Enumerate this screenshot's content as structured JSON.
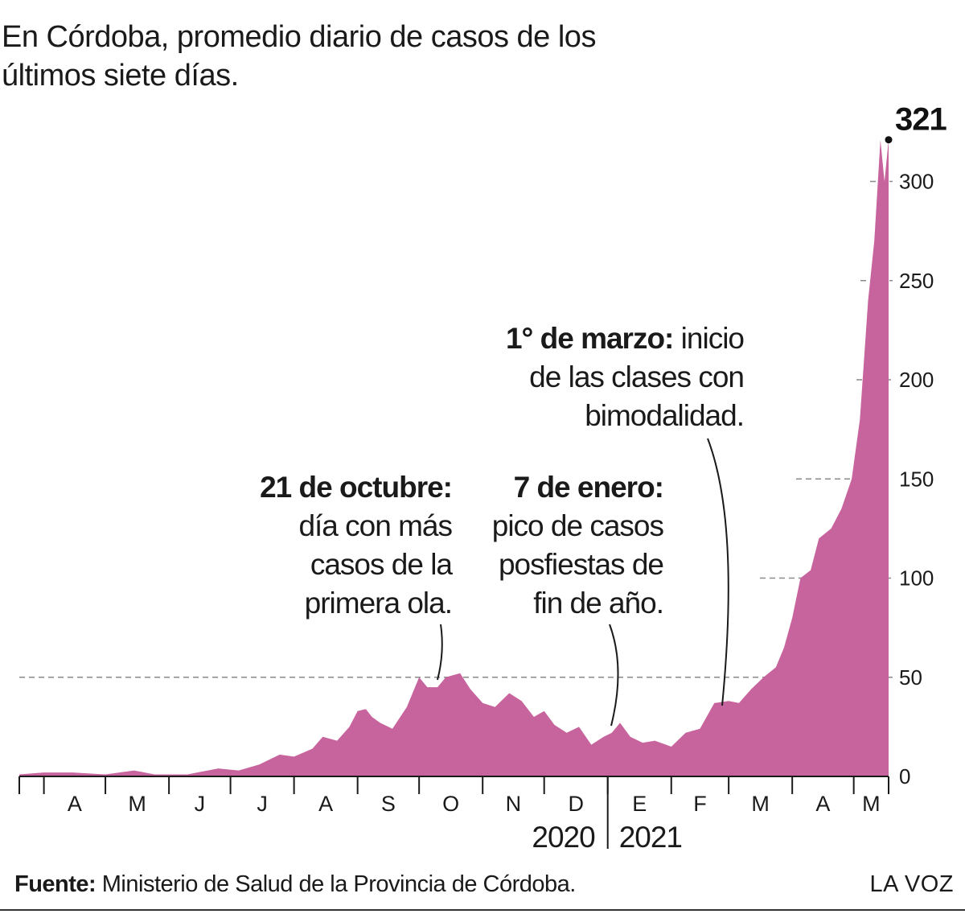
{
  "chart_data": {
    "type": "area",
    "title": "En Córdoba, promedio diario de casos de los últimos siete días.",
    "ylim": [
      0,
      321
    ],
    "yticks": [
      0,
      50,
      100,
      150,
      200,
      250,
      300
    ],
    "grid": "dashed lines at data levels",
    "color": "#c8649d",
    "x_start": "2020-03-20",
    "x_end": "2021-05-18",
    "months": [
      {
        "label": "A",
        "date": "2020-04"
      },
      {
        "label": "M",
        "date": "2020-05"
      },
      {
        "label": "J",
        "date": "2020-06"
      },
      {
        "label": "J",
        "date": "2020-07"
      },
      {
        "label": "A",
        "date": "2020-08"
      },
      {
        "label": "S",
        "date": "2020-09"
      },
      {
        "label": "O",
        "date": "2020-10"
      },
      {
        "label": "N",
        "date": "2020-11"
      },
      {
        "label": "D",
        "date": "2020-12"
      },
      {
        "label": "E",
        "date": "2021-01"
      },
      {
        "label": "F",
        "date": "2021-02"
      },
      {
        "label": "M",
        "date": "2021-03"
      },
      {
        "label": "A",
        "date": "2021-04"
      },
      {
        "label": "M",
        "date": "2021-05"
      }
    ],
    "years": [
      {
        "label": "2020"
      },
      {
        "label": "2021"
      }
    ],
    "series": [
      {
        "values": [
          {
            "x": "2020-03-20",
            "y": 1
          },
          {
            "x": "2020-04-01",
            "y": 2
          },
          {
            "x": "2020-04-15",
            "y": 2
          },
          {
            "x": "2020-05-01",
            "y": 1
          },
          {
            "x": "2020-05-15",
            "y": 3
          },
          {
            "x": "2020-05-25",
            "y": 1
          },
          {
            "x": "2020-06-10",
            "y": 1
          },
          {
            "x": "2020-06-25",
            "y": 4
          },
          {
            "x": "2020-07-05",
            "y": 3
          },
          {
            "x": "2020-07-15",
            "y": 6
          },
          {
            "x": "2020-07-25",
            "y": 11
          },
          {
            "x": "2020-08-01",
            "y": 10
          },
          {
            "x": "2020-08-10",
            "y": 14
          },
          {
            "x": "2020-08-15",
            "y": 20
          },
          {
            "x": "2020-08-22",
            "y": 18
          },
          {
            "x": "2020-08-28",
            "y": 25
          },
          {
            "x": "2020-09-01",
            "y": 33
          },
          {
            "x": "2020-09-05",
            "y": 34
          },
          {
            "x": "2020-09-08",
            "y": 30
          },
          {
            "x": "2020-09-12",
            "y": 27
          },
          {
            "x": "2020-09-18",
            "y": 24
          },
          {
            "x": "2020-09-25",
            "y": 35
          },
          {
            "x": "2020-10-01",
            "y": 50
          },
          {
            "x": "2020-10-05",
            "y": 45
          },
          {
            "x": "2020-10-10",
            "y": 45
          },
          {
            "x": "2020-10-14",
            "y": 50
          },
          {
            "x": "2020-10-21",
            "y": 52
          },
          {
            "x": "2020-10-26",
            "y": 44
          },
          {
            "x": "2020-11-01",
            "y": 37
          },
          {
            "x": "2020-11-07",
            "y": 35
          },
          {
            "x": "2020-11-14",
            "y": 42
          },
          {
            "x": "2020-11-20",
            "y": 38
          },
          {
            "x": "2020-11-26",
            "y": 30
          },
          {
            "x": "2020-12-01",
            "y": 33
          },
          {
            "x": "2020-12-06",
            "y": 26
          },
          {
            "x": "2020-12-12",
            "y": 22
          },
          {
            "x": "2020-12-18",
            "y": 25
          },
          {
            "x": "2020-12-24",
            "y": 16
          },
          {
            "x": "2020-12-30",
            "y": 20
          },
          {
            "x": "2021-01-03",
            "y": 22
          },
          {
            "x": "2021-01-07",
            "y": 27
          },
          {
            "x": "2021-01-12",
            "y": 20
          },
          {
            "x": "2021-01-18",
            "y": 17
          },
          {
            "x": "2021-01-24",
            "y": 18
          },
          {
            "x": "2021-02-01",
            "y": 15
          },
          {
            "x": "2021-02-08",
            "y": 22
          },
          {
            "x": "2021-02-15",
            "y": 24
          },
          {
            "x": "2021-02-22",
            "y": 37
          },
          {
            "x": "2021-03-01",
            "y": 38
          },
          {
            "x": "2021-03-06",
            "y": 37
          },
          {
            "x": "2021-03-12",
            "y": 44
          },
          {
            "x": "2021-03-18",
            "y": 50
          },
          {
            "x": "2021-03-24",
            "y": 55
          },
          {
            "x": "2021-03-28",
            "y": 65
          },
          {
            "x": "2021-04-01",
            "y": 80
          },
          {
            "x": "2021-04-05",
            "y": 100
          },
          {
            "x": "2021-04-10",
            "y": 104
          },
          {
            "x": "2021-04-14",
            "y": 120
          },
          {
            "x": "2021-04-20",
            "y": 125
          },
          {
            "x": "2021-04-25",
            "y": 135
          },
          {
            "x": "2021-04-30",
            "y": 150
          },
          {
            "x": "2021-05-04",
            "y": 180
          },
          {
            "x": "2021-05-08",
            "y": 240
          },
          {
            "x": "2021-05-11",
            "y": 270
          },
          {
            "x": "2021-05-14",
            "y": 321
          },
          {
            "x": "2021-05-16",
            "y": 300
          },
          {
            "x": "2021-05-18",
            "y": 321
          }
        ]
      }
    ],
    "peak_label": "321",
    "annotations": [
      {
        "id": "oct",
        "date": "2020-10-21",
        "bold": "21 de octubre:",
        "lines": [
          "día con más",
          "casos de la",
          "primera ola."
        ]
      },
      {
        "id": "jan",
        "date": "2021-01-07",
        "bold": "7 de enero:",
        "lines": [
          "pico de casos",
          "posfiestas de",
          "fin de año."
        ]
      },
      {
        "id": "mar",
        "date": "2021-03-01",
        "bold": "1° de marzo:",
        "first_rest": " inicio",
        "lines": [
          "de las clases con",
          "bimodalidad."
        ]
      }
    ]
  },
  "footer": {
    "source_label": "Fuente:",
    "source_text": " Ministerio de Salud de la Provincia de Córdoba.",
    "brand": "LA VOZ"
  }
}
